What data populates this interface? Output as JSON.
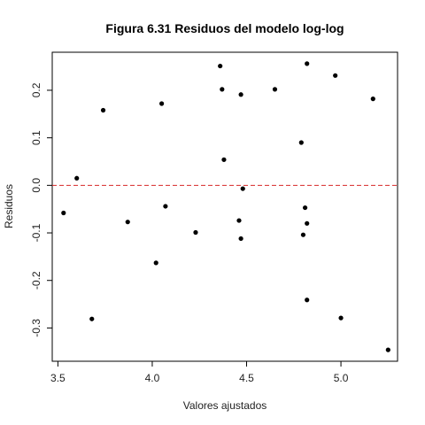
{
  "chart_data": {
    "type": "scatter",
    "title": "Figura 6.31 Residuos del modelo log-log",
    "xlabel": "Valores ajustados",
    "ylabel": "Residuos",
    "xlim": [
      3.47,
      5.3
    ],
    "ylim": [
      -0.37,
      0.28
    ],
    "xticks": [
      3.5,
      4.0,
      4.5,
      5.0
    ],
    "xtick_labels": [
      "3.5",
      "4.0",
      "4.5",
      "5.0"
    ],
    "yticks": [
      -0.3,
      -0.2,
      -0.1,
      0.0,
      0.1,
      0.2
    ],
    "ytick_labels": [
      "-0.3",
      "-0.2",
      "-0.1",
      "0.0",
      "0.1",
      "0.2"
    ],
    "reference_line": {
      "y": 0.0,
      "style": "dashed",
      "color": "#d62728"
    },
    "grid": false,
    "point_color": "#000000",
    "points": [
      {
        "x": 3.53,
        "y": -0.058
      },
      {
        "x": 3.6,
        "y": 0.015
      },
      {
        "x": 3.68,
        "y": -0.281
      },
      {
        "x": 3.74,
        "y": 0.158
      },
      {
        "x": 3.87,
        "y": -0.077
      },
      {
        "x": 4.02,
        "y": -0.163
      },
      {
        "x": 4.05,
        "y": 0.172
      },
      {
        "x": 4.07,
        "y": -0.044
      },
      {
        "x": 4.23,
        "y": -0.099
      },
      {
        "x": 4.36,
        "y": 0.251
      },
      {
        "x": 4.37,
        "y": 0.202
      },
      {
        "x": 4.38,
        "y": 0.054
      },
      {
        "x": 4.46,
        "y": -0.074
      },
      {
        "x": 4.47,
        "y": 0.191
      },
      {
        "x": 4.47,
        "y": -0.112
      },
      {
        "x": 4.48,
        "y": -0.007
      },
      {
        "x": 4.65,
        "y": 0.202
      },
      {
        "x": 4.79,
        "y": 0.09
      },
      {
        "x": 4.8,
        "y": -0.104
      },
      {
        "x": 4.81,
        "y": -0.047
      },
      {
        "x": 4.82,
        "y": 0.256
      },
      {
        "x": 4.82,
        "y": -0.241
      },
      {
        "x": 4.82,
        "y": -0.08
      },
      {
        "x": 4.97,
        "y": 0.231
      },
      {
        "x": 5.0,
        "y": -0.279
      },
      {
        "x": 5.17,
        "y": 0.182
      },
      {
        "x": 5.25,
        "y": -0.346
      }
    ]
  }
}
